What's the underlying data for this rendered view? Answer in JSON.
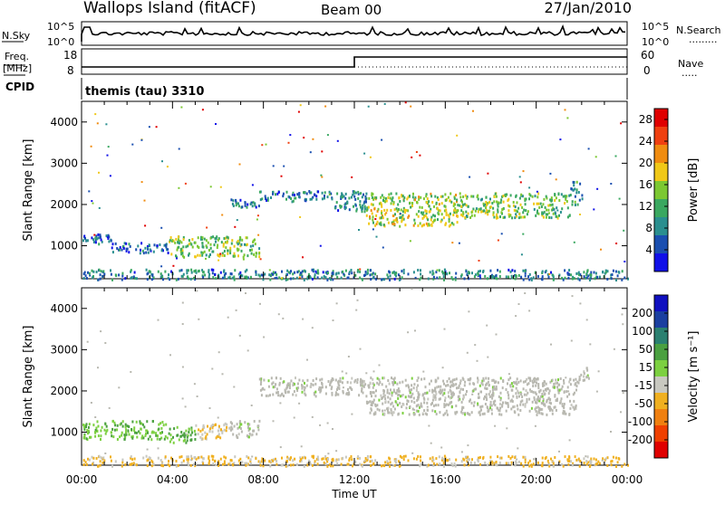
{
  "header": {
    "title": "Wallops Island (fitACF)",
    "beam": "Beam 00",
    "date": "27/Jan/2010"
  },
  "sky_panel": {
    "left_label": "N.Sky",
    "left_ticks": [
      "10^5",
      "10^0"
    ],
    "right_ticks": [
      "10^5",
      "10^0"
    ],
    "right_label": "N.Search",
    "right_legend": "........."
  },
  "freq_panel": {
    "left_label_1": "Freq.",
    "left_label_2": "[MHz]",
    "left_ticks": [
      "18",
      "8"
    ],
    "right_ticks": [
      "60",
      "0"
    ],
    "right_label": "Nave",
    "right_legend": "....."
  },
  "cpid_panel": {
    "left_label": "CPID",
    "program": "themis (tau) 3310"
  },
  "colors": {
    "power_scale": [
      "#1010e8",
      "#1a4fb0",
      "#2a8f8f",
      "#3aa860",
      "#7cc832",
      "#f0c818",
      "#f08c10",
      "#f04010",
      "#e00000"
    ],
    "velocity_scale": [
      "#1010c0",
      "#1a3fa0",
      "#2a8070",
      "#4aa040",
      "#7cd040",
      "#c8c8c0",
      "#f0b020",
      "#f08010",
      "#f04000",
      "#e00000"
    ],
    "ground_scatter": "#b8b8b0"
  },
  "chart_data": [
    {
      "type": "heatmap",
      "name": "power",
      "ylabel": "Slant Range [km]",
      "yticks": [
        1000,
        2000,
        3000,
        4000
      ],
      "ylim": [
        200,
        4500
      ],
      "xlim": [
        0,
        24
      ],
      "colorbar_label": "Power [dB]",
      "colorbar_ticks": [
        4,
        8,
        12,
        16,
        20,
        24,
        28
      ],
      "colorbar_range": [
        0,
        30
      ],
      "features": [
        {
          "t0": 0.0,
          "t1": 1.3,
          "r0": 1050,
          "r1": 1300,
          "value": 6
        },
        {
          "t0": 1.3,
          "t1": 3.8,
          "r0": 850,
          "r1": 1100,
          "value": 6
        },
        {
          "t0": 3.8,
          "t1": 7.8,
          "r0": 750,
          "r1": 1250,
          "value": 14
        },
        {
          "t0": 6.5,
          "t1": 7.8,
          "r0": 1950,
          "r1": 2150,
          "value": 8
        },
        {
          "t0": 7.8,
          "t1": 11.0,
          "r0": 2100,
          "r1": 2350,
          "value": 7
        },
        {
          "t0": 11.0,
          "t1": 12.5,
          "r0": 1850,
          "r1": 2350,
          "value": 8
        },
        {
          "t0": 12.5,
          "t1": 16.5,
          "r0": 1500,
          "r1": 2300,
          "value": 16
        },
        {
          "t0": 16.5,
          "t1": 21.5,
          "r0": 1700,
          "r1": 2300,
          "value": 14
        },
        {
          "t0": 21.5,
          "t1": 22.0,
          "r0": 2000,
          "r1": 2600,
          "value": 9
        },
        {
          "t0": 0.0,
          "t1": 24.0,
          "r0": 200,
          "r1": 450,
          "value": 8
        }
      ]
    },
    {
      "type": "heatmap",
      "name": "velocity",
      "ylabel": "Slant Range [km]",
      "yticks": [
        1000,
        2000,
        3000,
        4000
      ],
      "ylim": [
        200,
        4500
      ],
      "xlim": [
        0,
        24
      ],
      "xlabel": "Time UT",
      "xticks": [
        "00:00",
        "04:00",
        "08:00",
        "12:00",
        "16:00",
        "20:00",
        "00:00"
      ],
      "colorbar_label": "Velocity [m s⁻¹]",
      "colorbar_ticks": [
        200,
        100,
        50,
        15,
        -15,
        -50,
        -100,
        -200
      ],
      "colorbar_range": [
        -250,
        250
      ],
      "features": [
        {
          "t0": 0.0,
          "t1": 3.8,
          "r0": 850,
          "r1": 1300,
          "value": 40
        },
        {
          "t0": 3.8,
          "t1": 5.0,
          "r0": 750,
          "r1": 1150,
          "value": 60
        },
        {
          "t0": 5.0,
          "t1": 6.5,
          "r0": 850,
          "r1": 1250,
          "value": -40
        },
        {
          "t0": 6.5,
          "t1": 7.8,
          "r0": 900,
          "r1": 1300,
          "value": 0
        },
        {
          "t0": 7.8,
          "t1": 12.5,
          "r0": 1900,
          "r1": 2350,
          "value": 0
        },
        {
          "t0": 12.5,
          "t1": 21.8,
          "r0": 1450,
          "r1": 2350,
          "value": 0
        },
        {
          "t0": 21.8,
          "t1": 22.3,
          "r0": 2200,
          "r1": 2600,
          "value": 0
        },
        {
          "t0": 0.0,
          "t1": 24.0,
          "r0": 200,
          "r1": 450,
          "value": -60
        }
      ]
    }
  ]
}
